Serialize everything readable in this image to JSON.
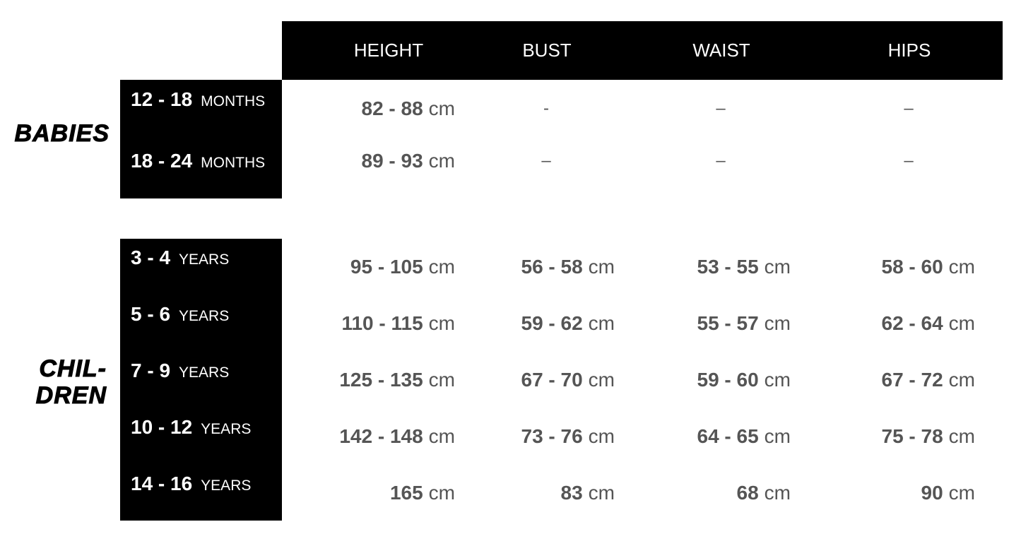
{
  "header": {
    "columns": [
      "HEIGHT",
      "BUST",
      "WAIST",
      "HIPS"
    ]
  },
  "groups": [
    {
      "label": [
        "BABIES"
      ],
      "rows": [
        {
          "age": "12 - 18",
          "unit": "MONTHS",
          "cells": [
            {
              "value": "82 - 88",
              "unit": "cm"
            },
            {
              "value": "-"
            },
            {
              "value": "–"
            },
            {
              "value": "–"
            }
          ]
        },
        {
          "age": "18 - 24",
          "unit": "MONTHS",
          "cells": [
            {
              "value": "89 - 93",
              "unit": "cm"
            },
            {
              "value": "–"
            },
            {
              "value": "–"
            },
            {
              "value": "–"
            }
          ]
        }
      ]
    },
    {
      "label": [
        "CHIL-",
        "DREN"
      ],
      "rows": [
        {
          "age": "3 - 4",
          "unit": "YEARS",
          "cells": [
            {
              "value": "95 - 105",
              "unit": "cm"
            },
            {
              "value": "56 - 58",
              "unit": "cm"
            },
            {
              "value": "53 - 55",
              "unit": "cm"
            },
            {
              "value": "58 - 60",
              "unit": "cm"
            }
          ]
        },
        {
          "age": "5 - 6",
          "unit": "YEARS",
          "cells": [
            {
              "value": "110 - 115",
              "unit": "cm"
            },
            {
              "value": "59 - 62",
              "unit": "cm"
            },
            {
              "value": "55 - 57",
              "unit": "cm"
            },
            {
              "value": "62 - 64",
              "unit": "cm"
            }
          ]
        },
        {
          "age": "7 - 9",
          "unit": "YEARS",
          "cells": [
            {
              "value": "125 - 135",
              "unit": "cm"
            },
            {
              "value": "67 - 70",
              "unit": "cm"
            },
            {
              "value": "59 - 60",
              "unit": "cm"
            },
            {
              "value": "67 - 72",
              "unit": "cm"
            }
          ]
        },
        {
          "age": "10 - 12",
          "unit": "YEARS",
          "cells": [
            {
              "value": "142 - 148",
              "unit": "cm"
            },
            {
              "value": "73 - 76",
              "unit": "cm"
            },
            {
              "value": "64 - 65",
              "unit": "cm"
            },
            {
              "value": "75 - 78",
              "unit": "cm"
            }
          ]
        },
        {
          "age": "14 - 16",
          "unit": "YEARS",
          "cells": [
            {
              "value": "165",
              "unit": "cm"
            },
            {
              "value": "83",
              "unit": "cm"
            },
            {
              "value": "68",
              "unit": "cm"
            },
            {
              "value": "90",
              "unit": "cm"
            }
          ]
        }
      ]
    }
  ]
}
